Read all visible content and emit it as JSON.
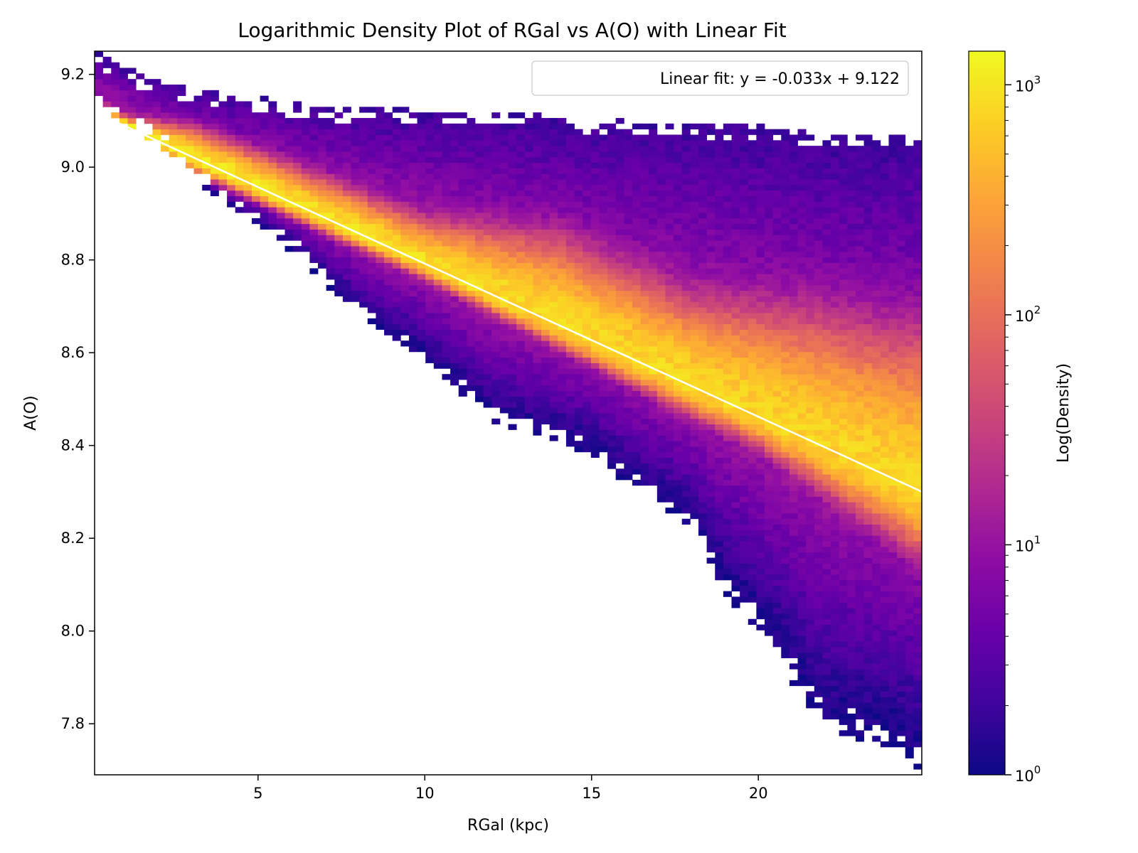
{
  "chart_data": {
    "type": "heatmap",
    "title": "Logarithmic Density Plot of RGal vs A(O) with Linear Fit",
    "xlabel": "RGal (kpc)",
    "ylabel": "A(O)",
    "xlim": [
      0.1,
      24.9
    ],
    "ylim": [
      7.69,
      9.25
    ],
    "xticks": [
      5,
      10,
      15,
      20
    ],
    "xtick_labels": [
      "5",
      "10",
      "15",
      "20"
    ],
    "yticks": [
      7.8,
      8.0,
      8.2,
      8.4,
      8.6,
      8.8,
      9.0,
      9.2
    ],
    "ytick_labels": [
      "7.8",
      "8.0",
      "8.2",
      "8.4",
      "8.6",
      "8.8",
      "9.0",
      "9.2"
    ],
    "colormap": "plasma",
    "colorbar": {
      "label": "Log(Density)",
      "scale": "log",
      "range": [
        1,
        1400
      ],
      "ticks": [
        1,
        10,
        100,
        1000
      ],
      "tick_bases": [
        "10",
        "10",
        "10",
        "10"
      ],
      "tick_exponents": [
        "0",
        "1",
        "2",
        "3"
      ]
    },
    "fit": {
      "slope": -0.033,
      "intercept": 9.122,
      "x_range": [
        0.3,
        24.9
      ],
      "color": "#ffffff",
      "legend_label": "Linear fit: y = -0.033x + 9.122"
    },
    "density_model": {
      "ridge_upper_x": [
        0.1,
        3,
        6,
        10,
        14,
        18,
        20,
        22,
        24,
        24.9
      ],
      "ridge_upper_dev": [
        0.0,
        0.04,
        0.05,
        0.06,
        0.12,
        0.12,
        0.15,
        0.18,
        0.2,
        0.22
      ],
      "ridge_lower_x": [
        0.1,
        3,
        6,
        10,
        14,
        18,
        20,
        22,
        24,
        24.9
      ],
      "ridge_lower_dev": [
        0.0,
        0.02,
        0.02,
        0.02,
        0.03,
        0.04,
        0.04,
        0.06,
        0.08,
        0.09
      ],
      "lower_edge_x": [
        0.1,
        2,
        4,
        6,
        8,
        10,
        12,
        15,
        16,
        18,
        19,
        20,
        22,
        24,
        24.9
      ],
      "lower_edge_y": [
        9.13,
        9.05,
        8.92,
        8.82,
        8.68,
        8.58,
        8.45,
        8.38,
        8.32,
        8.22,
        8.08,
        8.0,
        7.78,
        7.75,
        7.7
      ],
      "upper_edge_x": [
        0.1,
        1.5,
        3,
        7,
        12,
        16,
        20,
        22,
        24.9
      ],
      "upper_edge_y": [
        9.25,
        9.2,
        9.17,
        9.13,
        9.12,
        9.1,
        9.09,
        9.07,
        9.07
      ],
      "peak_density": 1200,
      "cloud_density": [
        25,
        2
      ]
    },
    "grid": false,
    "legend_position": "top-right"
  }
}
